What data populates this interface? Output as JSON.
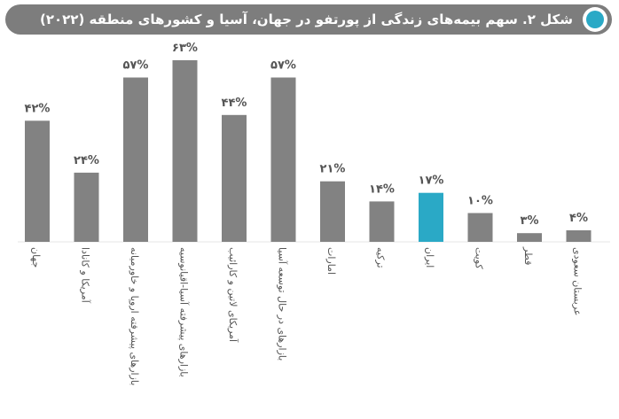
{
  "title": "شکل ۲. سهم بیمه‌های زندگی از پورتفو در جهان، آسیا و کشورهای منطقه (۲۰۲۲)",
  "colors": {
    "bar": "#828282",
    "highlight": "#2aa9c6",
    "text": "#555555",
    "title_bg": "#7d7d7d"
  },
  "chart_data": {
    "type": "bar",
    "categories": [
      "جهان",
      "آمریکا و کانادا",
      "بازارهای پیشرفته اروپا و خاورمیانه",
      "بازارهای پیشرفته آسیا-اقیانوسیه",
      "آمریکای لاتین و کارائیب",
      "بازارهای در حال توسعه آسیا",
      "امارات",
      "ترکیه",
      "ایران",
      "کویت",
      "قطر",
      "عربستان سعودی"
    ],
    "values": [
      42,
      24,
      57,
      63,
      44,
      57,
      21,
      14,
      17,
      10,
      3,
      4
    ],
    "value_labels": [
      "۴۲%",
      "۲۴%",
      "۵۷%",
      "۶۳%",
      "۴۴%",
      "۵۷%",
      "۲۱%",
      "۱۴%",
      "۱۷%",
      "۱۰%",
      "۳%",
      "۴%"
    ],
    "highlight_category": "ایران",
    "ylim": [
      0,
      63
    ],
    "grid": false,
    "legend": "none"
  }
}
